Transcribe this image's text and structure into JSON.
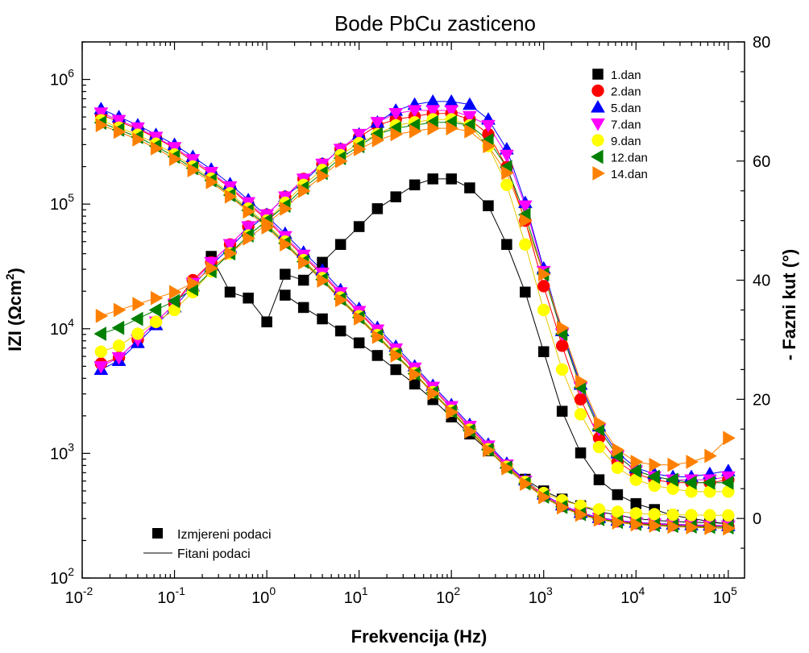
{
  "chart_data": {
    "type": "scatter",
    "title": "Bode PbCu zasticeno",
    "xlabel": "Frekvencija (Hz)",
    "ylabel_left_main": "IZI (Ωcm",
    "ylabel_left_sup": "2",
    "ylabel_left_end": ")",
    "ylabel_right": "- Fazni kut (°)",
    "x_scale": "log",
    "y_left_scale": "log",
    "xlim": [
      0.01,
      150000
    ],
    "ylim_left": [
      100,
      2000000
    ],
    "ylim_right": [
      -10,
      80
    ],
    "x_ticks": [
      {
        "base": "10",
        "exp": "-2"
      },
      {
        "base": "10",
        "exp": "-1"
      },
      {
        "base": "10",
        "exp": "0"
      },
      {
        "base": "10",
        "exp": "1"
      },
      {
        "base": "10",
        "exp": "2"
      },
      {
        "base": "10",
        "exp": "3"
      },
      {
        "base": "10",
        "exp": "4"
      },
      {
        "base": "10",
        "exp": "5"
      }
    ],
    "y_left_ticks": [
      {
        "base": "10",
        "exp": "2"
      },
      {
        "base": "10",
        "exp": "3"
      },
      {
        "base": "10",
        "exp": "4"
      },
      {
        "base": "10",
        "exp": "5"
      },
      {
        "base": "10",
        "exp": "6"
      }
    ],
    "y_right_ticks": [
      "0",
      "20",
      "40",
      "60",
      "80"
    ],
    "legend_series_placement": "top-right",
    "legend_type_placement": "bottom-left",
    "legend_types": [
      {
        "label": "Izmjereni podaci",
        "kind": "marker"
      },
      {
        "label": "Fitani podaci",
        "kind": "line"
      }
    ],
    "frequencies": [
      0.016,
      0.025,
      0.04,
      0.063,
      0.1,
      0.158,
      0.25,
      0.4,
      0.63,
      1.0,
      1.58,
      2.5,
      4.0,
      6.3,
      10,
      15.8,
      25,
      40,
      63,
      100,
      158,
      251,
      398,
      631,
      1000,
      1585,
      2512,
      3981,
      6310,
      10000,
      15849,
      25119,
      39811,
      63096,
      100000
    ],
    "series": [
      {
        "name": "1.dan",
        "color": "#000000",
        "marker": "square",
        "impedance": [
          null,
          null,
          null,
          null,
          null,
          null,
          null,
          null,
          null,
          null,
          18600,
          14800,
          12000,
          9600,
          7700,
          6100,
          4700,
          3600,
          2700,
          1960,
          1430,
          1050,
          780,
          620,
          500,
          430,
          380,
          340,
          320,
          300,
          290,
          285,
          280,
          278,
          275
        ],
        "phase": [
          null,
          null,
          null,
          null,
          null,
          null,
          44,
          38,
          37,
          33,
          41,
          40,
          43,
          46,
          49,
          52,
          54,
          56,
          57,
          57,
          55.5,
          52.5,
          46,
          38,
          28,
          18,
          11,
          6.5,
          4,
          2.5,
          1.5,
          0.5,
          0,
          -0.5,
          -1
        ]
      },
      {
        "name": "2.dan",
        "color": "#ff0000",
        "marker": "circle",
        "impedance": [
          520000,
          460000,
          400000,
          340000,
          280000,
          220000,
          175000,
          135000,
          100000,
          75000,
          53000,
          38000,
          27000,
          19000,
          13500,
          9500,
          6700,
          4700,
          3300,
          2300,
          1600,
          1120,
          800,
          590,
          460,
          380,
          330,
          300,
          285,
          275,
          270,
          266,
          263,
          261,
          260
        ],
        "phase": [
          26,
          27,
          30,
          33,
          36,
          40,
          43,
          46,
          49,
          51,
          54,
          57,
          59.5,
          62,
          64,
          66,
          67,
          67.5,
          68,
          68,
          67,
          64.5,
          59,
          50,
          39,
          29,
          20,
          13.5,
          9.5,
          7.5,
          6.5,
          6,
          6,
          6,
          6.5
        ]
      },
      {
        "name": "5.dan",
        "color": "#0000ff",
        "marker": "triangle-up",
        "impedance": [
          580000,
          500000,
          430000,
          360000,
          300000,
          240000,
          190000,
          145000,
          108000,
          80000,
          58000,
          41000,
          29500,
          20500,
          14500,
          10200,
          7200,
          5000,
          3500,
          2450,
          1700,
          1180,
          830,
          610,
          470,
          385,
          335,
          305,
          290,
          280,
          274,
          270,
          267,
          265,
          263
        ],
        "phase": [
          25,
          26.5,
          29.5,
          32.5,
          35.5,
          39,
          42.5,
          45.5,
          48.5,
          51,
          54,
          56.5,
          59.5,
          62,
          64.5,
          66.5,
          68.5,
          69.5,
          70,
          70,
          69.5,
          67,
          62,
          53,
          42,
          31.5,
          22.5,
          15.5,
          11,
          8.5,
          7.5,
          7,
          7,
          7.5,
          8
        ]
      },
      {
        "name": "7.dan",
        "color": "#ff00ff",
        "marker": "triangle-down",
        "impedance": [
          540000,
          470000,
          410000,
          345000,
          285000,
          228000,
          180000,
          138000,
          103000,
          77000,
          55000,
          39000,
          28000,
          19500,
          13800,
          9800,
          6900,
          4850,
          3400,
          2380,
          1650,
          1150,
          810,
          600,
          465,
          382,
          333,
          302,
          288,
          278,
          272,
          268,
          265,
          263,
          262
        ],
        "phase": [
          25.5,
          27,
          30,
          33,
          36,
          39.5,
          43,
          46,
          49,
          51,
          54,
          57,
          59.5,
          62,
          64.5,
          66.5,
          68,
          68.5,
          68.5,
          68.5,
          67.5,
          66,
          61,
          52.5,
          41.5,
          31,
          22,
          15,
          10.5,
          8,
          7,
          6.5,
          6.5,
          6.5,
          7
        ]
      },
      {
        "name": "9.dan",
        "color": "#ffff00",
        "marker": "circle",
        "impedance": [
          470000,
          410000,
          360000,
          305000,
          250000,
          200000,
          160000,
          122000,
          92000,
          69000,
          50000,
          35500,
          25500,
          17800,
          12600,
          8900,
          6300,
          4400,
          3100,
          2200,
          1550,
          1080,
          780,
          590,
          480,
          420,
          380,
          355,
          340,
          330,
          325,
          322,
          320,
          319,
          318
        ],
        "phase": [
          28,
          29,
          31,
          33,
          35,
          38,
          41.5,
          44.5,
          47.5,
          50,
          53,
          56,
          58.5,
          61,
          63,
          64.5,
          66,
          66.5,
          67,
          67,
          66,
          62.5,
          56,
          46,
          35,
          25,
          17.5,
          12,
          8.5,
          6.5,
          5.5,
          5,
          4.5,
          4.5,
          4.5
        ]
      },
      {
        "name": "12.dan",
        "color": "#008000",
        "marker": "triangle-left",
        "impedance": [
          450000,
          395000,
          345000,
          292000,
          240000,
          194000,
          155000,
          118000,
          89000,
          67000,
          48500,
          34500,
          24800,
          17300,
          12300,
          8700,
          6200,
          4350,
          3070,
          2170,
          1520,
          1070,
          770,
          575,
          450,
          372,
          326,
          297,
          282,
          272,
          266,
          262,
          259,
          257,
          255
        ],
        "phase": [
          31,
          32,
          33.5,
          35,
          36.5,
          38.5,
          41.5,
          44.5,
          47.5,
          50,
          52.5,
          55.5,
          58,
          60.5,
          62.5,
          64.5,
          65.5,
          66,
          66.5,
          66.5,
          66,
          63.5,
          59,
          51,
          41,
          31,
          22,
          15,
          10.5,
          8,
          7,
          6.5,
          6,
          6,
          6
        ]
      },
      {
        "name": "14.dan",
        "color": "#ff8000",
        "marker": "triangle-right",
        "impedance": [
          430000,
          380000,
          330000,
          280000,
          230000,
          187000,
          150000,
          115000,
          87000,
          65000,
          47500,
          34000,
          24300,
          17000,
          12100,
          8600,
          6100,
          4300,
          3030,
          2140,
          1500,
          1060,
          760,
          570,
          445,
          368,
          322,
          294,
          279,
          269,
          263,
          258,
          255,
          252,
          250
        ],
        "phase": [
          34,
          35,
          36,
          37,
          38,
          39.5,
          42,
          44.5,
          47,
          49.5,
          52,
          55,
          57.5,
          60,
          62,
          63.5,
          64.5,
          65,
          65.5,
          65.5,
          65,
          62.5,
          58,
          50,
          41,
          32,
          23,
          16,
          11.5,
          9.5,
          9,
          9,
          9.5,
          10.5,
          13.5
        ]
      }
    ]
  }
}
